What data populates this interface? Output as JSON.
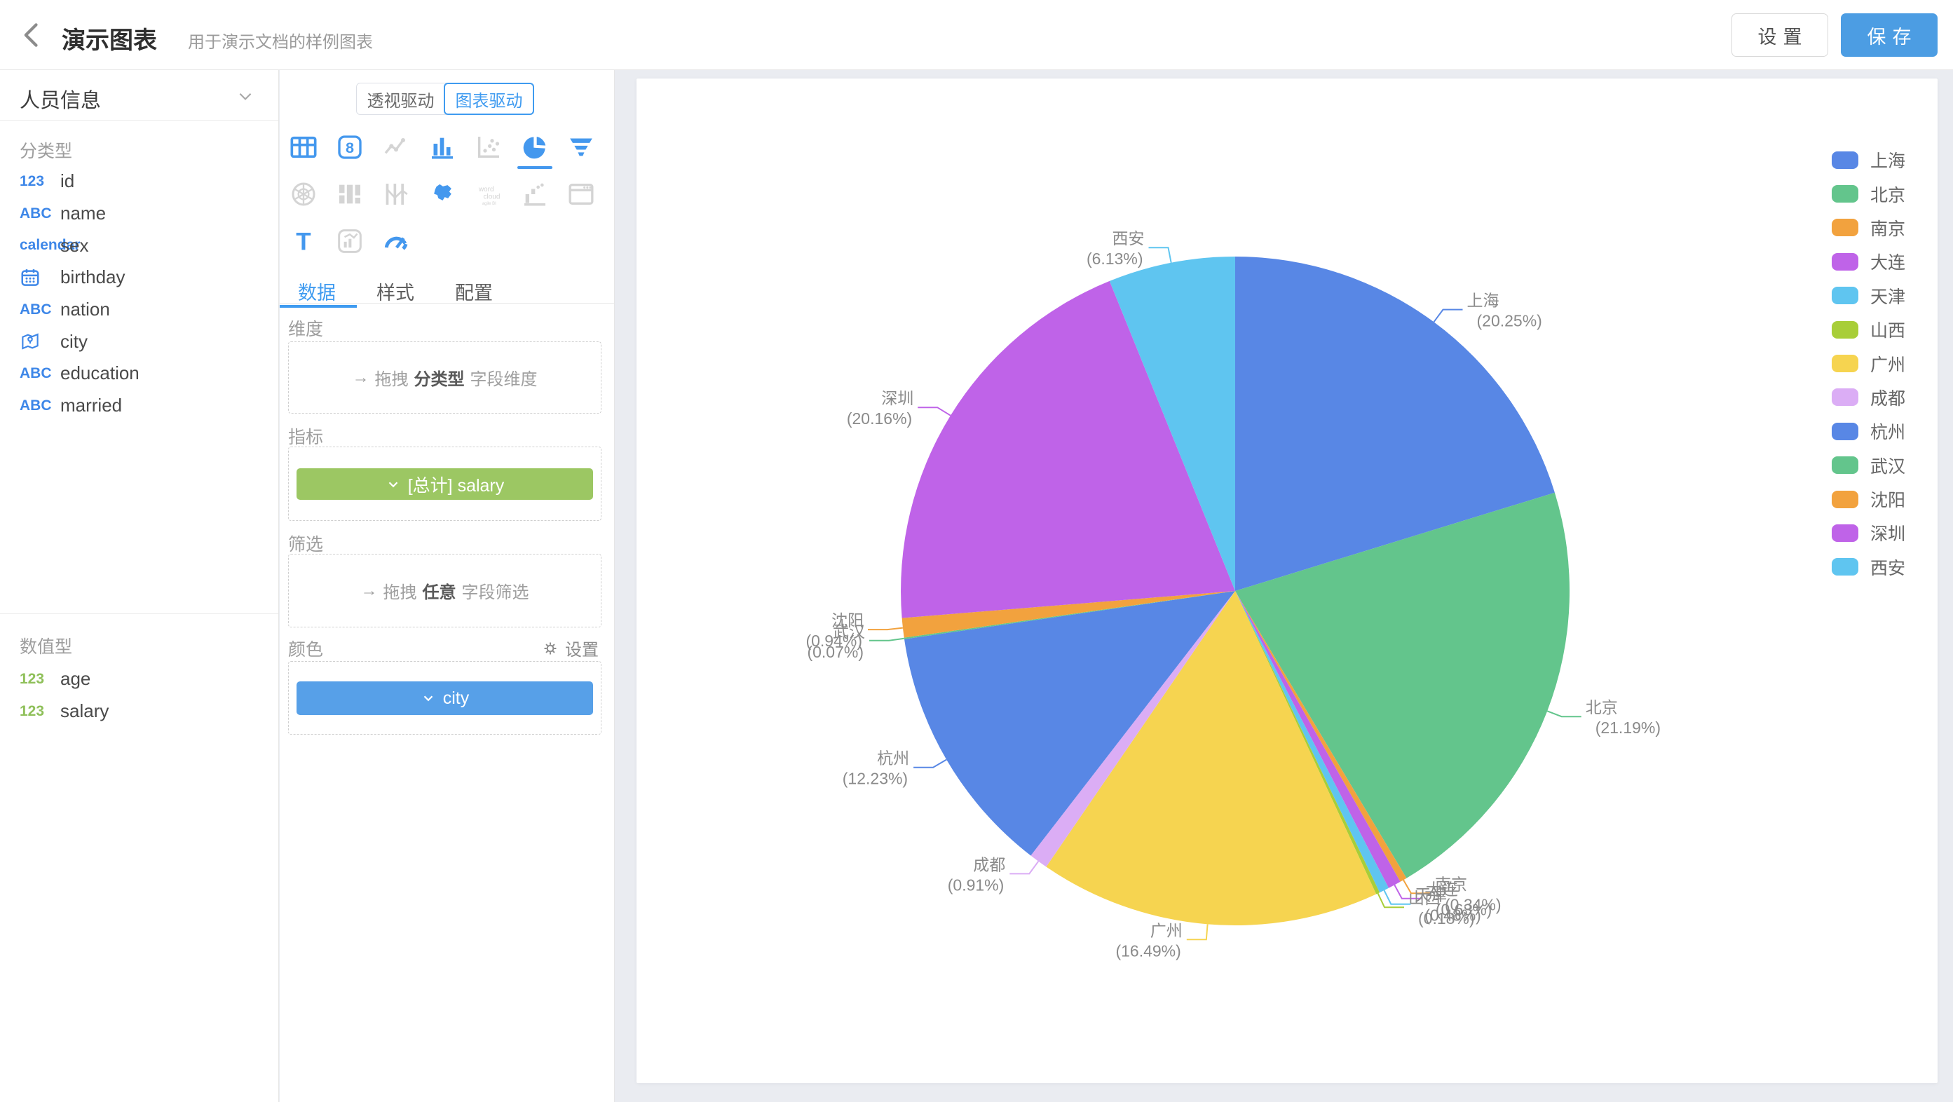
{
  "topbar": {
    "title": "演示图表",
    "subtitle": "用于演示文档的样例图表",
    "settings_label": "设置",
    "save_label": "保存"
  },
  "sidebar": {
    "dataset_name": "人员信息",
    "sections": [
      {
        "label": "分类型",
        "fields": [
          {
            "icon": "123",
            "icon_color": "blue",
            "name": "id"
          },
          {
            "icon": "ABC",
            "icon_color": "blue",
            "name": "name"
          },
          {
            "icon": "calendar",
            "icon_color": "blue",
            "name": "sex"
          },
          {
            "icon": "calendar-svg",
            "icon_color": "blue",
            "name": "birthday"
          },
          {
            "icon": "ABC",
            "icon_color": "blue",
            "name": "nation"
          },
          {
            "icon": "location-svg",
            "icon_color": "blue",
            "name": "city"
          },
          {
            "icon": "ABC",
            "icon_color": "blue",
            "name": "education"
          },
          {
            "icon": "ABC",
            "icon_color": "blue",
            "name": "married"
          }
        ]
      },
      {
        "label": "数值型",
        "fields": [
          {
            "icon": "123",
            "icon_color": "green",
            "name": "age"
          },
          {
            "icon": "123",
            "icon_color": "green",
            "name": "salary"
          }
        ]
      }
    ]
  },
  "panel": {
    "mode_toggle": {
      "options": [
        "透视驱动",
        "图表驱动"
      ],
      "active": "图表驱动"
    },
    "chart_types": [
      {
        "name": "table",
        "state": "active"
      },
      {
        "name": "indicator-card",
        "state": "active"
      },
      {
        "name": "line-chart",
        "state": "disabled"
      },
      {
        "name": "bar-chart",
        "state": "active"
      },
      {
        "name": "scatter-chart",
        "state": "disabled"
      },
      {
        "name": "pie-chart",
        "state": "selected"
      },
      {
        "name": "funnel-chart",
        "state": "active"
      },
      {
        "name": "radar-chart",
        "state": "disabled"
      },
      {
        "name": "treemap-chart",
        "state": "disabled"
      },
      {
        "name": "parallel-chart",
        "state": "disabled"
      },
      {
        "name": "map-chart",
        "state": "active"
      },
      {
        "name": "word-cloud",
        "state": "disabled"
      },
      {
        "name": "waterfall-chart",
        "state": "disabled"
      },
      {
        "name": "iframe-widget",
        "state": "disabled"
      },
      {
        "name": "text-widget",
        "state": "active"
      },
      {
        "name": "chart-mix",
        "state": "disabled"
      },
      {
        "name": "gauge-chart",
        "state": "active"
      }
    ],
    "tabs": {
      "items": [
        "数据",
        "样式",
        "配置"
      ],
      "active": "数据"
    },
    "sections": {
      "dimension": {
        "label": "维度",
        "drop_prefix": "拖拽",
        "drop_em": "分类型",
        "drop_suffix": "字段维度"
      },
      "measure": {
        "label": "指标",
        "pill": "[总计] salary",
        "pill_color": "#9cc763"
      },
      "filter": {
        "label": "筛选",
        "drop_prefix": "拖拽",
        "drop_em": "任意",
        "drop_suffix": "字段筛选"
      },
      "color": {
        "label": "颜色",
        "action": "设置",
        "pill": "city",
        "pill_color": "#57a0e8"
      }
    }
  },
  "chart_data": {
    "type": "pie",
    "title": "",
    "categories": [
      "上海",
      "北京",
      "南京",
      "大连",
      "天津",
      "山西",
      "广州",
      "成都",
      "杭州",
      "武汉",
      "沈阳",
      "深圳",
      "西安"
    ],
    "values": [
      20.25,
      21.19,
      0.34,
      0.63,
      0.48,
      0.18,
      16.49,
      0.91,
      12.23,
      0.07,
      0.94,
      20.16,
      6.13
    ],
    "value_unit": "%",
    "label_format": "{name} ({percent}%)",
    "palette": [
      "#5887e5",
      "#63c58c",
      "#f2a23e",
      "#bf63e8",
      "#5fc5f0",
      "#a8ce38",
      "#f6d450",
      "#dbadf5"
    ],
    "legend_position": "right",
    "start_angle_deg": 0,
    "direction": "clockwise"
  }
}
